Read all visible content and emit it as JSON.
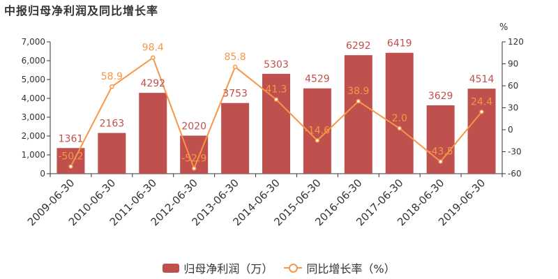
{
  "chart_data": {
    "type": "bar",
    "title": "中报归母净利润及同比增长率",
    "categories": [
      "2009-06-30",
      "2010-06-30",
      "2011-06-30",
      "2012-06-30",
      "2013-06-30",
      "2014-06-30",
      "2015-06-30",
      "2016-06-30",
      "2017-06-30",
      "2018-06-30",
      "2019-06-30"
    ],
    "series": [
      {
        "name": "归母净利润（万）",
        "type": "bar",
        "axis": "left",
        "color": "#c0504d",
        "values": [
          1361,
          2163,
          4292,
          2020,
          3753,
          5303,
          4529,
          6292,
          6419,
          3629,
          4514
        ],
        "labels": [
          "1361",
          "2163",
          "4292",
          "2020",
          "3753",
          "5303",
          "4529",
          "6292",
          "6419",
          "3629",
          "4514"
        ]
      },
      {
        "name": "同比增长率（%）",
        "type": "line",
        "axis": "right",
        "color": "#f79646",
        "values": [
          -50.2,
          58.9,
          98.4,
          -52.9,
          85.8,
          41.3,
          -14.6,
          38.9,
          2.0,
          -43.5,
          24.4
        ],
        "labels": [
          "-50.2",
          "58.9",
          "98.4",
          "-52.9",
          "85.8",
          "41.3",
          "-14.6",
          "38.9",
          "2.0",
          "-43.5",
          "24.4"
        ]
      }
    ],
    "y_left": {
      "lim": [
        0,
        7000
      ],
      "ticks": [
        0,
        1000,
        2000,
        3000,
        4000,
        5000,
        6000,
        7000
      ],
      "tick_labels": [
        "0",
        "1,000",
        "2,000",
        "3,000",
        "4,000",
        "5,000",
        "6,000",
        "7,000"
      ]
    },
    "y_right": {
      "unit": "%",
      "lim": [
        -60,
        120
      ],
      "ticks": [
        -60,
        -30,
        0,
        30,
        60,
        90,
        120
      ],
      "tick_labels": [
        "-60",
        "-30",
        "0",
        "30",
        "60",
        "90",
        "120"
      ]
    },
    "legend": "bottom-center",
    "grid": false
  }
}
